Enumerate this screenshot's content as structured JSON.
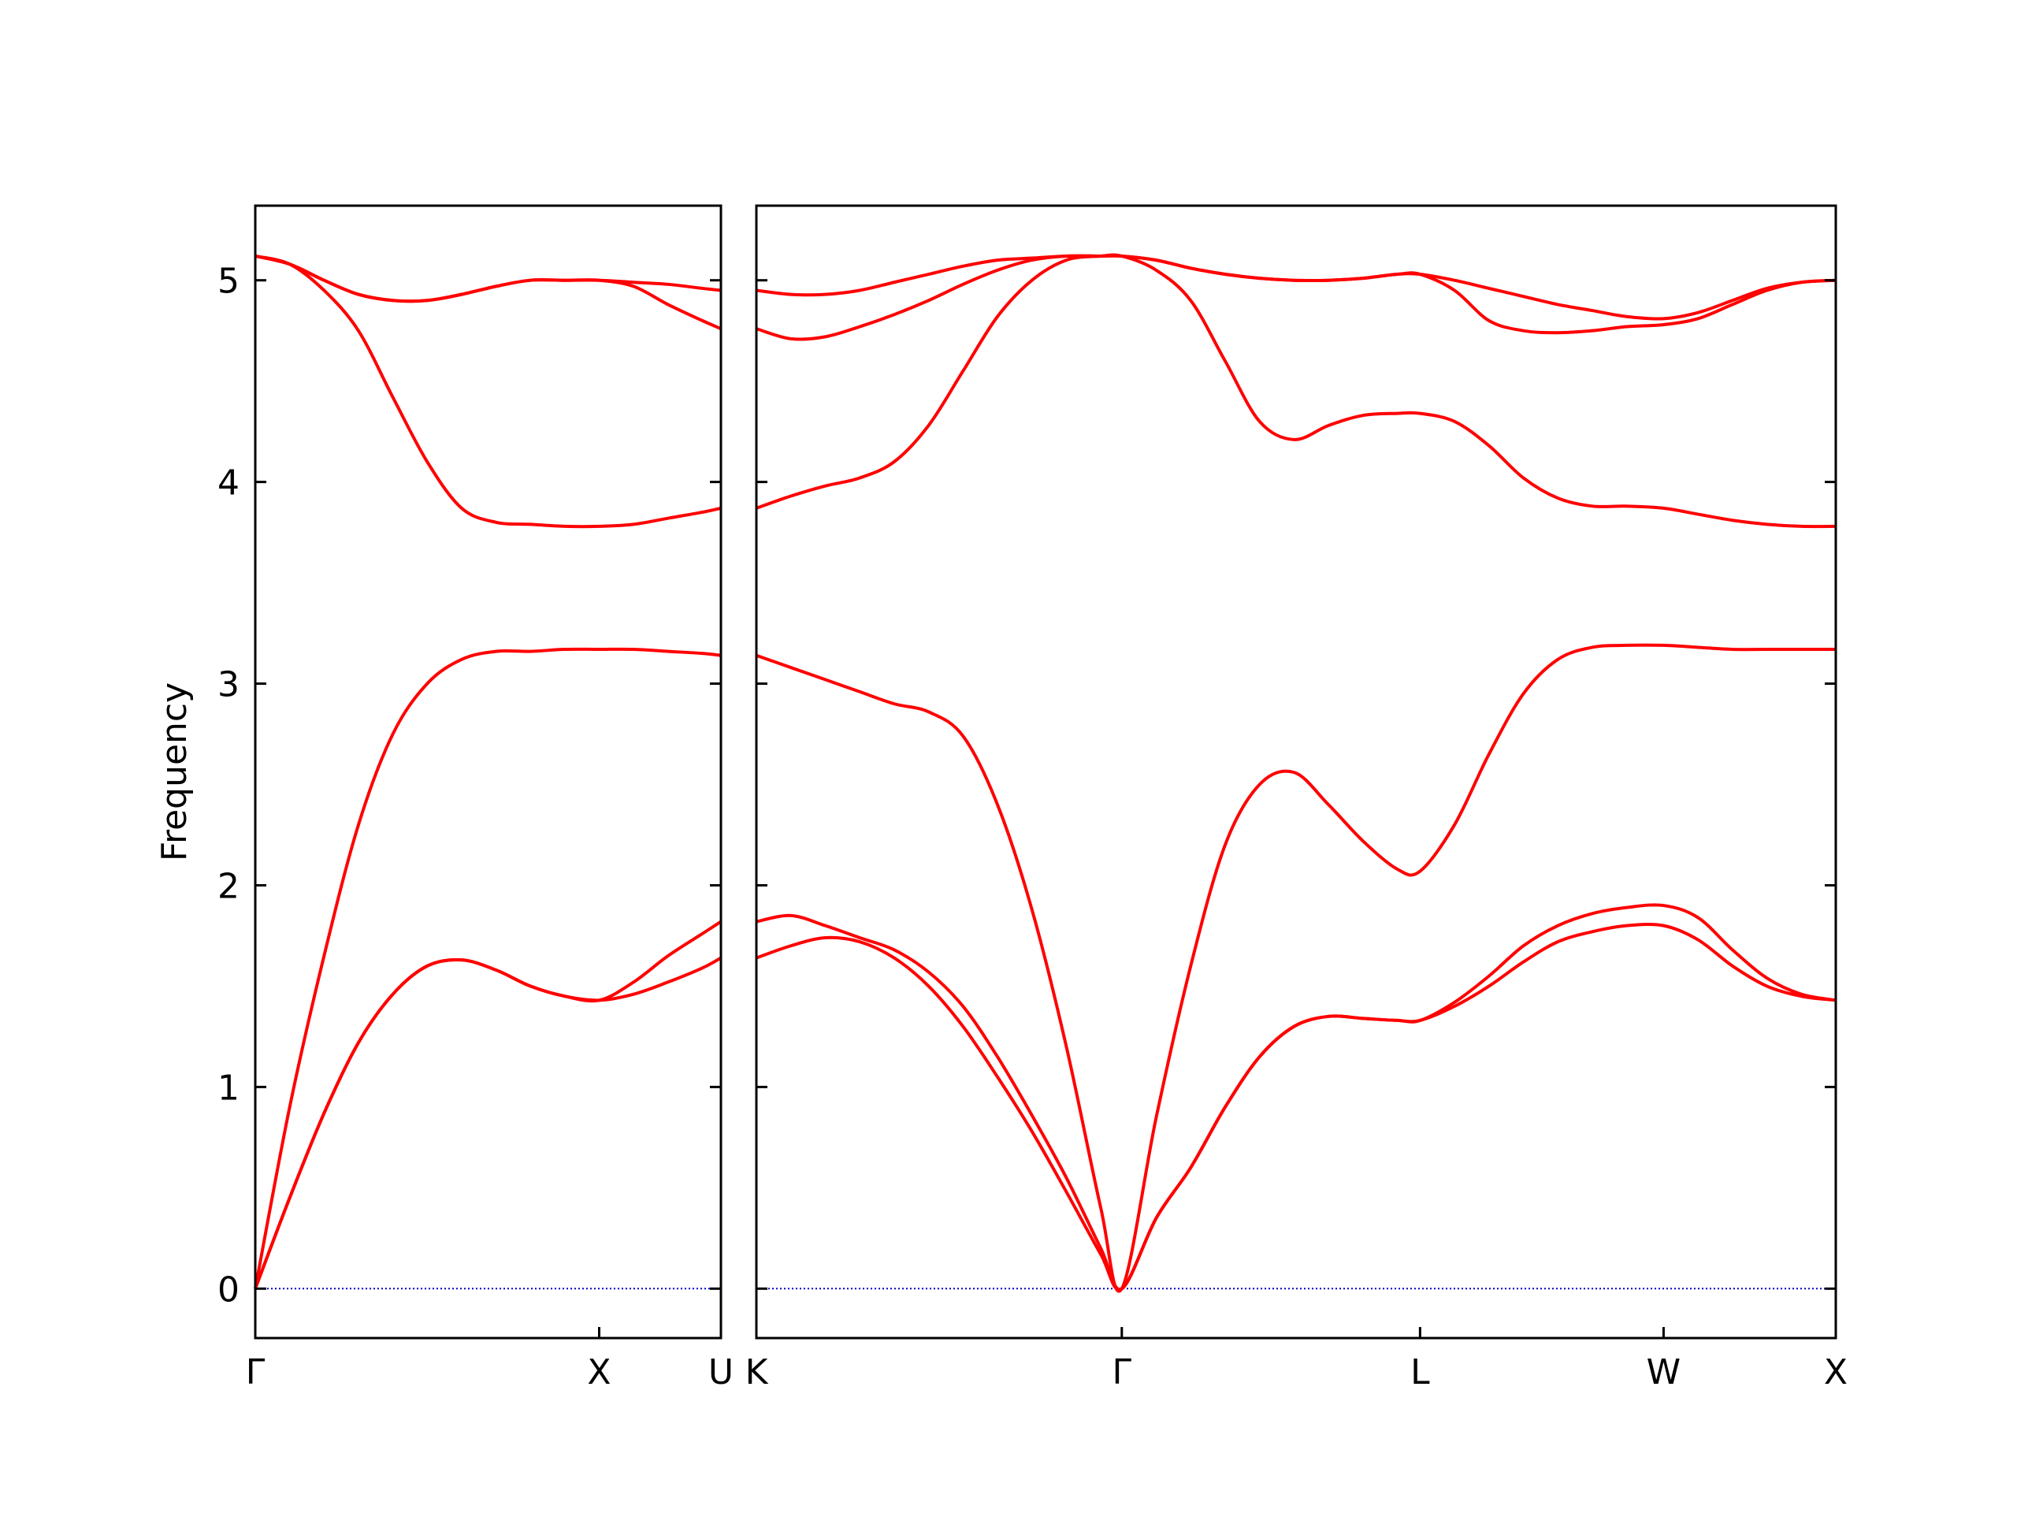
{
  "chart_data": [
    {
      "type": "line",
      "ylabel": "Frequency",
      "color": "#ff0000",
      "zero_line_color": "#0000cc",
      "xlim": [
        0,
        1.354
      ],
      "ylim": [
        -0.245,
        5.37
      ],
      "xticks": [
        {
          "value": 0,
          "label": "Γ"
        },
        {
          "value": 1,
          "label": "X"
        },
        {
          "value": 1.354,
          "label": "U"
        }
      ],
      "yticks": [
        0,
        1,
        2,
        3,
        4,
        5
      ],
      "x": [
        0,
        0.1,
        0.2,
        0.3,
        0.4,
        0.5,
        0.6,
        0.7,
        0.8,
        0.9,
        1.0,
        1.1,
        1.2,
        1.3,
        1.354
      ],
      "series": [
        {
          "values": [
            0,
            0.45,
            0.87,
            1.22,
            1.46,
            1.6,
            1.63,
            1.58,
            1.5,
            1.45,
            1.43,
            1.46,
            1.52,
            1.59,
            1.64
          ]
        },
        {
          "values": [
            0,
            0.45,
            0.87,
            1.22,
            1.46,
            1.6,
            1.63,
            1.58,
            1.5,
            1.45,
            1.43,
            1.52,
            1.65,
            1.76,
            1.82
          ]
        },
        {
          "values": [
            0,
            0.9,
            1.65,
            2.3,
            2.75,
            3.0,
            3.12,
            3.16,
            3.16,
            3.17,
            3.17,
            3.17,
            3.16,
            3.15,
            3.14
          ]
        },
        {
          "values": [
            5.12,
            5.08,
            4.95,
            4.75,
            4.42,
            4.1,
            3.87,
            3.8,
            3.79,
            3.78,
            3.78,
            3.79,
            3.82,
            3.85,
            3.87
          ]
        },
        {
          "values": [
            5.12,
            5.08,
            5.0,
            4.93,
            4.9,
            4.9,
            4.93,
            4.97,
            5.0,
            5.0,
            5.0,
            4.97,
            4.88,
            4.8,
            4.76
          ]
        },
        {
          "values": [
            5.12,
            5.08,
            5.0,
            4.93,
            4.9,
            4.9,
            4.93,
            4.97,
            5.0,
            5.0,
            5.0,
            4.99,
            4.98,
            4.96,
            4.95
          ]
        }
      ]
    },
    {
      "type": "line",
      "color": "#ff0000",
      "zero_line_color": "#0000cc",
      "xlim": [
        1.354,
        4.488
      ],
      "ylim": [
        -0.245,
        5.37
      ],
      "xticks": [
        {
          "value": 1.354,
          "label": "K"
        },
        {
          "value": 2.415,
          "label": "Γ"
        },
        {
          "value": 3.281,
          "label": "L"
        },
        {
          "value": 3.988,
          "label": "W"
        },
        {
          "value": 4.488,
          "label": "X"
        }
      ],
      "x": [
        1.354,
        1.454,
        1.554,
        1.654,
        1.754,
        1.854,
        1.954,
        2.054,
        2.154,
        2.254,
        2.354,
        2.415,
        2.515,
        2.615,
        2.715,
        2.815,
        2.915,
        3.015,
        3.115,
        3.215,
        3.281,
        3.381,
        3.481,
        3.581,
        3.681,
        3.781,
        3.881,
        3.988,
        4.088,
        4.188,
        4.288,
        4.388,
        4.488
      ],
      "series": [
        {
          "values": [
            1.64,
            1.7,
            1.74,
            1.72,
            1.64,
            1.5,
            1.3,
            1.05,
            0.78,
            0.48,
            0.17,
            0,
            0.35,
            0.6,
            0.9,
            1.15,
            1.3,
            1.35,
            1.34,
            1.33,
            1.33,
            1.4,
            1.5,
            1.62,
            1.72,
            1.77,
            1.8,
            1.8,
            1.73,
            1.6,
            1.5,
            1.45,
            1.43
          ]
        },
        {
          "values": [
            1.82,
            1.85,
            1.8,
            1.74,
            1.68,
            1.57,
            1.4,
            1.15,
            0.86,
            0.55,
            0.2,
            0,
            0.35,
            0.6,
            0.9,
            1.15,
            1.3,
            1.35,
            1.34,
            1.33,
            1.33,
            1.42,
            1.55,
            1.7,
            1.8,
            1.86,
            1.89,
            1.9,
            1.84,
            1.68,
            1.54,
            1.46,
            1.43
          ]
        },
        {
          "values": [
            3.14,
            3.08,
            3.02,
            2.96,
            2.9,
            2.86,
            2.74,
            2.4,
            1.88,
            1.2,
            0.4,
            0,
            0.85,
            1.6,
            2.2,
            2.5,
            2.56,
            2.4,
            2.22,
            2.08,
            2.07,
            2.3,
            2.65,
            2.95,
            3.12,
            3.18,
            3.19,
            3.19,
            3.18,
            3.17,
            3.17,
            3.17,
            3.17
          ]
        },
        {
          "values": [
            3.87,
            3.93,
            3.98,
            4.02,
            4.1,
            4.28,
            4.55,
            4.82,
            5.0,
            5.1,
            5.12,
            5.12,
            5.05,
            4.9,
            4.6,
            4.3,
            4.21,
            4.28,
            4.33,
            4.34,
            4.34,
            4.3,
            4.18,
            4.02,
            3.92,
            3.88,
            3.88,
            3.87,
            3.84,
            3.81,
            3.79,
            3.78,
            3.78
          ]
        },
        {
          "values": [
            4.76,
            4.71,
            4.72,
            4.77,
            4.83,
            4.9,
            4.98,
            5.05,
            5.1,
            5.12,
            5.12,
            5.12,
            5.1,
            5.06,
            5.03,
            5.01,
            5.0,
            5.0,
            5.01,
            5.03,
            5.03,
            4.95,
            4.8,
            4.75,
            4.74,
            4.75,
            4.77,
            4.78,
            4.81,
            4.88,
            4.95,
            4.99,
            5.0
          ]
        },
        {
          "values": [
            4.95,
            4.93,
            4.93,
            4.95,
            4.99,
            5.03,
            5.07,
            5.1,
            5.11,
            5.12,
            5.12,
            5.12,
            5.1,
            5.06,
            5.03,
            5.01,
            5.0,
            5.0,
            5.01,
            5.03,
            5.03,
            5.0,
            4.96,
            4.92,
            4.88,
            4.85,
            4.82,
            4.81,
            4.84,
            4.9,
            4.96,
            4.99,
            5.0
          ]
        }
      ]
    }
  ]
}
